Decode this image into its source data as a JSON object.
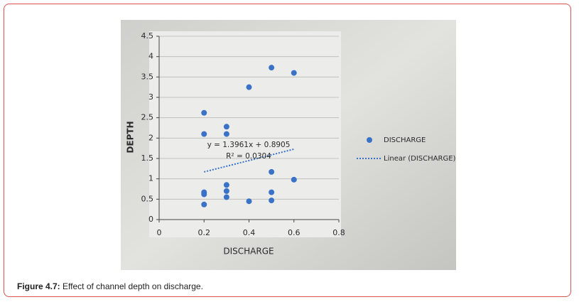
{
  "chart_data": {
    "type": "scatter",
    "x_label": "DISCHARGE",
    "y_label": "DEPTH",
    "x": [
      0.2,
      0.2,
      0.2,
      0.2,
      0.2,
      0.3,
      0.3,
      0.3,
      0.3,
      0.3,
      0.4,
      0.4,
      0.5,
      0.5,
      0.5,
      0.5,
      0.6,
      0.6
    ],
    "series": [
      {
        "name": "DISCHARGE",
        "color": "#3a72c8",
        "values": [
          2.62,
          2.1,
          0.67,
          0.62,
          0.37,
          2.28,
          2.1,
          0.85,
          0.7,
          0.55,
          3.25,
          0.45,
          3.73,
          1.17,
          0.67,
          0.47,
          3.6,
          0.98
        ]
      }
    ],
    "trendline": {
      "name": "Linear (DISCHARGE)",
      "slope": 1.3961,
      "intercept": 0.8905,
      "equation": "y = 1.3961x + 0.8905",
      "r2": "R² = 0.0304"
    },
    "xlim": [
      0,
      0.8
    ],
    "xticks": [
      {
        "value": 0,
        "label": "0"
      },
      0.2,
      0.4,
      0.6,
      0.8
    ],
    "ylim": [
      0,
      4.5
    ],
    "yticks": [
      0,
      0.5,
      1,
      1.5,
      2,
      2.5,
      3,
      3.5,
      4,
      4.5
    ],
    "grid": true
  },
  "caption": {
    "label": "Figure 4.7:",
    "text": " Effect of channel depth on discharge."
  }
}
